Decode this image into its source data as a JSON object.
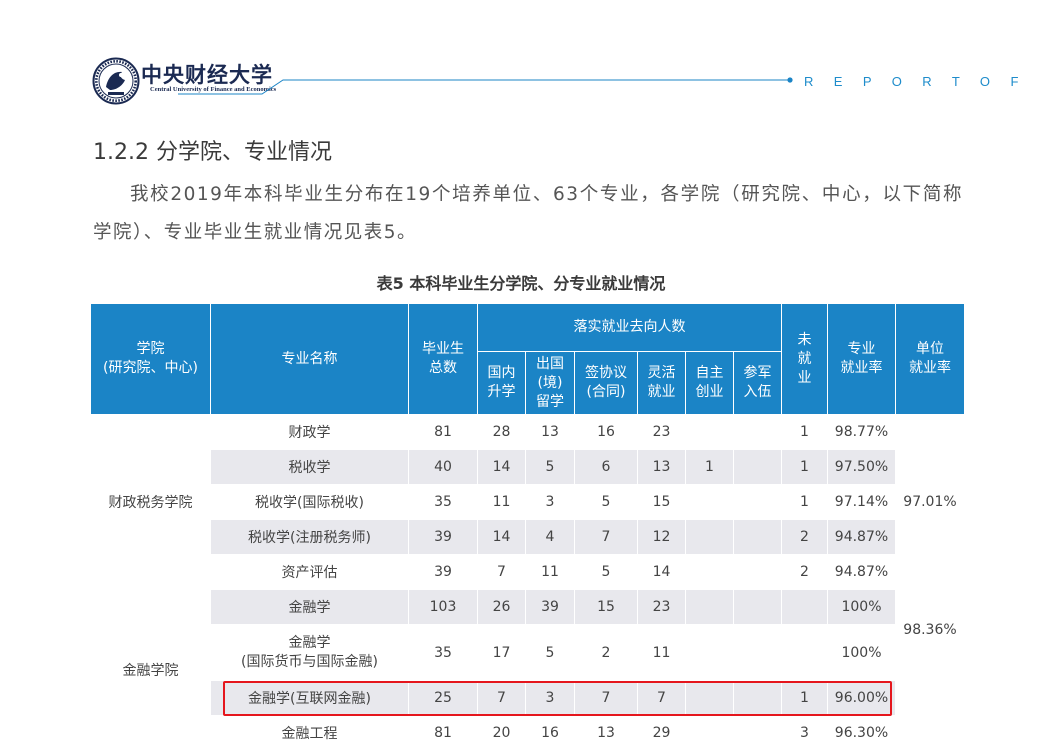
{
  "header": {
    "university_cn": "中央财经大学",
    "university_en": "Central University of Finance and Economics",
    "report_label": "R E P O R T  O F",
    "accent_color": "#1b84c6",
    "logo_icon": "university-seal-icon"
  },
  "section": {
    "title": "1.2.2  分学院、专业情况",
    "paragraph": "我校2019年本科毕业生分布在19个培养单位、63个专业，各学院（研究院、中心，以下简称学院）、专业毕业生就业情况见表5。"
  },
  "table": {
    "caption": "表5  本科毕业生分学院、分专业就业情况",
    "headers": {
      "college": [
        "学院",
        "(研究院、中心)"
      ],
      "major": "专业名称",
      "total": [
        "毕业生",
        "总数"
      ],
      "destination_group": "落实就业去向人数",
      "destinations": [
        [
          "国内",
          "升学"
        ],
        [
          "出国",
          "(境)",
          "留学"
        ],
        [
          "签协议",
          "(合同)"
        ],
        [
          "灵活",
          "就业"
        ],
        [
          "自主",
          "创业"
        ],
        [
          "参军",
          "入伍"
        ]
      ],
      "unemployed": [
        "未",
        "就",
        "业"
      ],
      "major_rate": [
        "专业",
        "就业率"
      ],
      "unit_rate": [
        "单位",
        "就业率"
      ]
    },
    "groups": [
      {
        "college": "财政税务学院",
        "unit_rate": "97.01%",
        "rows": [
          {
            "major": [
              "财政学"
            ],
            "total": "81",
            "domestic": "28",
            "abroad": "13",
            "contract": "16",
            "flexible": "23",
            "startup": "",
            "military": "",
            "unemployed": "1",
            "rate": "98.77%"
          },
          {
            "major": [
              "税收学"
            ],
            "total": "40",
            "domestic": "14",
            "abroad": "5",
            "contract": "6",
            "flexible": "13",
            "startup": "1",
            "military": "",
            "unemployed": "1",
            "rate": "97.50%"
          },
          {
            "major": [
              "税收学(国际税收)"
            ],
            "total": "35",
            "domestic": "11",
            "abroad": "3",
            "contract": "5",
            "flexible": "15",
            "startup": "",
            "military": "",
            "unemployed": "1",
            "rate": "97.14%"
          },
          {
            "major": [
              "税收学(注册税务师)"
            ],
            "total": "39",
            "domestic": "14",
            "abroad": "4",
            "contract": "7",
            "flexible": "12",
            "startup": "",
            "military": "",
            "unemployed": "2",
            "rate": "94.87%"
          },
          {
            "major": [
              "资产评估"
            ],
            "total": "39",
            "domestic": "7",
            "abroad": "11",
            "contract": "5",
            "flexible": "14",
            "startup": "",
            "military": "",
            "unemployed": "2",
            "rate": "94.87%"
          }
        ]
      },
      {
        "college": "金融学院",
        "unit_rate": "98.36%",
        "rows": [
          {
            "major": [
              "金融学"
            ],
            "total": "103",
            "domestic": "26",
            "abroad": "39",
            "contract": "15",
            "flexible": "23",
            "startup": "",
            "military": "",
            "unemployed": "",
            "rate": "100%"
          },
          {
            "major": [
              "金融学",
              "(国际货币与国际金融)"
            ],
            "total": "35",
            "domestic": "17",
            "abroad": "5",
            "contract": "2",
            "flexible": "11",
            "startup": "",
            "military": "",
            "unemployed": "",
            "rate": "100%"
          },
          {
            "major": [
              "金融学(互联网金融)"
            ],
            "total": "25",
            "domestic": "7",
            "abroad": "3",
            "contract": "7",
            "flexible": "7",
            "startup": "",
            "military": "",
            "unemployed": "1",
            "rate": "96.00%"
          },
          {
            "major": [
              "金融工程"
            ],
            "total": "81",
            "domestic": "20",
            "abroad": "16",
            "contract": "13",
            "flexible": "29",
            "startup": "",
            "military": "",
            "unemployed": "3",
            "rate": "96.30%"
          }
        ]
      }
    ],
    "highlight_color": "#e5161d"
  }
}
